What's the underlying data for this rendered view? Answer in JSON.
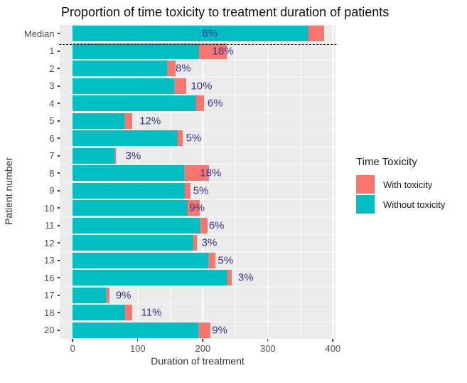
{
  "chart_data": {
    "type": "bar",
    "orientation": "horizontal",
    "stacked": true,
    "title": "Proportion of time toxicity to treatment duration of patients",
    "xlabel": "Duration of treatment",
    "ylabel": "Patient number",
    "xlim": [
      -20,
      404
    ],
    "x_major_ticks": [
      0,
      100,
      200,
      300,
      400
    ],
    "x_minor_gridlines": [
      50,
      150,
      250,
      350
    ],
    "panel_bg": "#EBEBEB",
    "grid_color": "#FFFFFF",
    "pct_label_color": "#32329B",
    "axis_text_color": "#4D4D4D",
    "divider_style": "dashed black line below Median row",
    "legend": {
      "title": "Time Toxicity",
      "position": "right",
      "items": [
        {
          "label": "With toxicity",
          "color": "#F8766D"
        },
        {
          "label": "Without toxicity",
          "color": "#00BFC4"
        }
      ]
    },
    "rows": [
      {
        "patient": "Median",
        "without_toxicity": 363,
        "with_toxicity": 23,
        "pct_label": "6%",
        "label_at": 211
      },
      {
        "patient": "1",
        "without_toxicity": 194,
        "with_toxicity": 43,
        "pct_label": "18%",
        "label_at": 231
      },
      {
        "patient": "2",
        "without_toxicity": 145,
        "with_toxicity": 13,
        "pct_label": "8%",
        "label_at": 170
      },
      {
        "patient": "3",
        "without_toxicity": 156,
        "with_toxicity": 18,
        "pct_label": "10%",
        "label_at": 198
      },
      {
        "patient": "4",
        "without_toxicity": 190,
        "with_toxicity": 12,
        "pct_label": "6%",
        "label_at": 219
      },
      {
        "patient": "5",
        "without_toxicity": 80,
        "with_toxicity": 11,
        "pct_label": "12%",
        "label_at": 119
      },
      {
        "patient": "6",
        "without_toxicity": 161,
        "with_toxicity": 8,
        "pct_label": "5%",
        "label_at": 186
      },
      {
        "patient": "7",
        "without_toxicity": 64,
        "with_toxicity": 2,
        "pct_label": "3%",
        "label_at": 93
      },
      {
        "patient": "8",
        "without_toxicity": 171,
        "with_toxicity": 38,
        "pct_label": "18%",
        "label_at": 212
      },
      {
        "patient": "9",
        "without_toxicity": 172,
        "with_toxicity": 9,
        "pct_label": "5%",
        "label_at": 197
      },
      {
        "patient": "10",
        "without_toxicity": 177,
        "with_toxicity": 18,
        "pct_label": "9%",
        "label_at": 191
      },
      {
        "patient": "11",
        "without_toxicity": 195,
        "with_toxicity": 12,
        "pct_label": "6%",
        "label_at": 221
      },
      {
        "patient": "12",
        "without_toxicity": 185,
        "with_toxicity": 6,
        "pct_label": "3%",
        "label_at": 210
      },
      {
        "patient": "13",
        "without_toxicity": 208,
        "with_toxicity": 11,
        "pct_label": "5%",
        "label_at": 235
      },
      {
        "patient": "16",
        "without_toxicity": 238,
        "with_toxicity": 7,
        "pct_label": "3%",
        "label_at": 266
      },
      {
        "patient": "17",
        "without_toxicity": 51,
        "with_toxicity": 5,
        "pct_label": "9%",
        "label_at": 78
      },
      {
        "patient": "18",
        "without_toxicity": 81,
        "with_toxicity": 10,
        "pct_label": "11%",
        "label_at": 121
      },
      {
        "patient": "20",
        "without_toxicity": 193,
        "with_toxicity": 19,
        "pct_label": "9%",
        "label_at": 226
      }
    ]
  }
}
